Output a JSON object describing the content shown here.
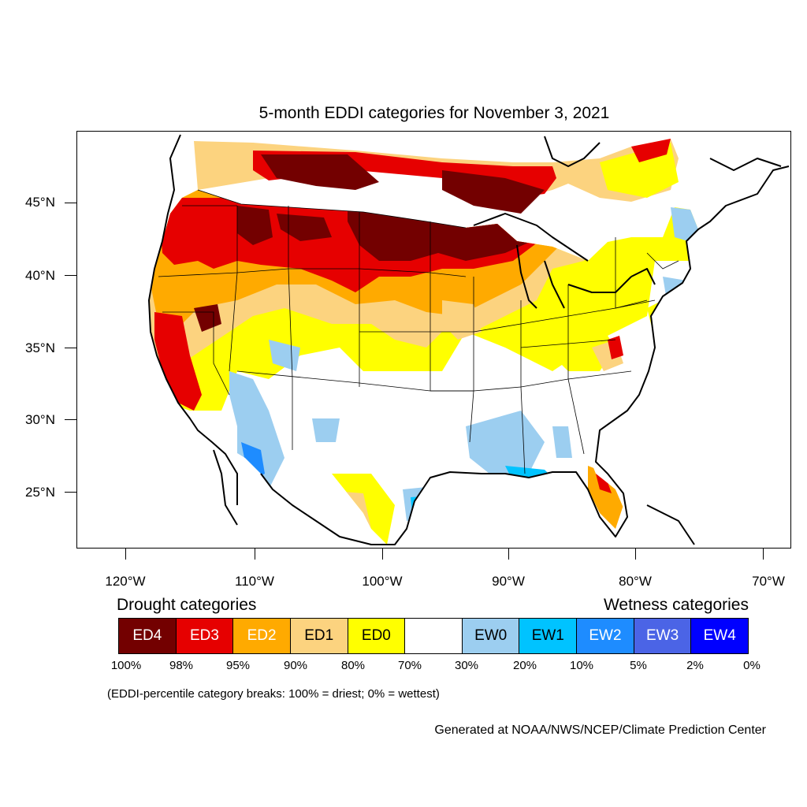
{
  "title": "5-month EDDI categories for November 3, 2021",
  "lat_labels": [
    "45°N",
    "40°N",
    "35°N",
    "30°N",
    "25°N"
  ],
  "lon_labels": [
    "120°W",
    "110°W",
    "100°W",
    "90°W",
    "80°W",
    "70°W"
  ],
  "legend": {
    "drought_heading": "Drought categories",
    "wetness_heading": "Wetness categories",
    "categories": [
      {
        "label": "ED4",
        "color": "#730000",
        "text_color": "#ffffff"
      },
      {
        "label": "ED3",
        "color": "#e60000",
        "text_color": "#ffffff"
      },
      {
        "label": "ED2",
        "color": "#ffaa00",
        "text_color": "#ffffff"
      },
      {
        "label": "ED1",
        "color": "#fcd37f",
        "text_color": "#000000"
      },
      {
        "label": "ED0",
        "color": "#ffff00",
        "text_color": "#000000"
      },
      {
        "label": "",
        "color": "#ffffff",
        "text_color": "#000000"
      },
      {
        "label": "EW0",
        "color": "#9ccef0",
        "text_color": "#000000"
      },
      {
        "label": "EW1",
        "color": "#00c3ff",
        "text_color": "#000000"
      },
      {
        "label": "EW2",
        "color": "#1e8cff",
        "text_color": "#ffffff"
      },
      {
        "label": "EW3",
        "color": "#4b64e6",
        "text_color": "#ffffff"
      },
      {
        "label": "EW4",
        "color": "#0000ff",
        "text_color": "#ffffff"
      }
    ],
    "percent_breaks": [
      "100%",
      "98%",
      "95%",
      "90%",
      "80%",
      "70%",
      "30%",
      "20%",
      "10%",
      "5%",
      "2%",
      "0%"
    ]
  },
  "breaks_note": "(EDDI-percentile category breaks: 100% = driest; 0% = wettest)",
  "credit": "Generated at NOAA/NWS/NCEP/Climate Prediction Center"
}
